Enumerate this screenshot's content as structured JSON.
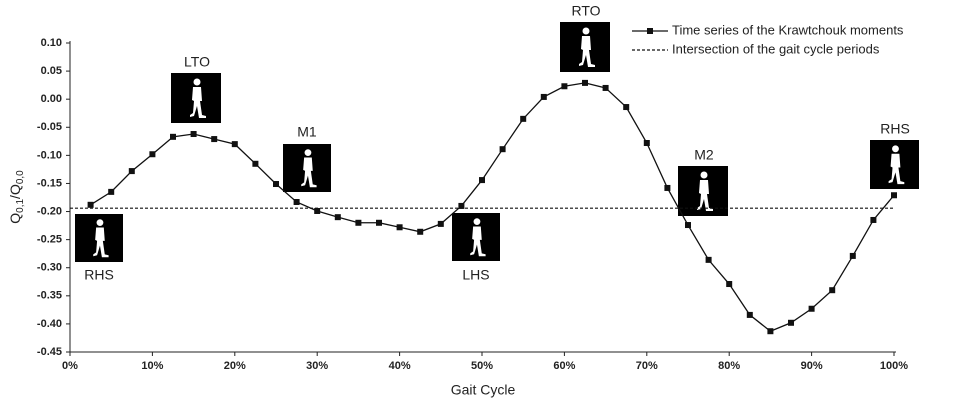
{
  "chart_data": {
    "type": "line",
    "x_label": "Gait Cycle",
    "y_label": [
      "Q",
      "0,1",
      "/Q",
      "0,0"
    ],
    "xlim": [
      0,
      100
    ],
    "ylim": [
      -0.45,
      0.1
    ],
    "xticks": [
      {
        "value": 0,
        "label": "0%"
      },
      {
        "value": 10,
        "label": "10%"
      },
      {
        "value": 20,
        "label": "20%"
      },
      {
        "value": 30,
        "label": "30%"
      },
      {
        "value": 40,
        "label": "40%"
      },
      {
        "value": 50,
        "label": "50%"
      },
      {
        "value": 60,
        "label": "60%"
      },
      {
        "value": 70,
        "label": "70%"
      },
      {
        "value": 80,
        "label": "80%"
      },
      {
        "value": 90,
        "label": "90%"
      },
      {
        "value": 100,
        "label": "100%"
      }
    ],
    "yticks": [
      {
        "value": 0.1,
        "label": "0.10"
      },
      {
        "value": 0.05,
        "label": "0.05"
      },
      {
        "value": 0,
        "label": "0.00"
      },
      {
        "value": -0.05,
        "label": "-0.05"
      },
      {
        "value": -0.1,
        "label": "-0.10"
      },
      {
        "value": -0.15,
        "label": "-0.15"
      },
      {
        "value": -0.2,
        "label": "-0.20"
      },
      {
        "value": -0.25,
        "label": "-0.25"
      },
      {
        "value": -0.3,
        "label": "-0.30"
      },
      {
        "value": -0.35,
        "label": "-0.35"
      },
      {
        "value": -0.4,
        "label": "-0.40"
      },
      {
        "value": -0.45,
        "label": "-0.45"
      }
    ],
    "legend": "top-right",
    "series": [
      {
        "name": "Time series of the Krawtchouk moments",
        "color": "#111111",
        "style": "solid",
        "marker": "square",
        "x": [
          2.5,
          5,
          7.5,
          10,
          12.5,
          15,
          17.5,
          20,
          22.5,
          25,
          27.5,
          30,
          32.5,
          35,
          37.5,
          40,
          42.5,
          45,
          47.5,
          50,
          52.5,
          55,
          57.5,
          60,
          62.5,
          65,
          67.5,
          70,
          72.5,
          75,
          77.5,
          80,
          82.5,
          85,
          87.5,
          90,
          92.5,
          95,
          97.5,
          100
        ],
        "values": [
          -0.188,
          -0.165,
          -0.128,
          -0.098,
          -0.067,
          -0.062,
          -0.071,
          -0.08,
          -0.115,
          -0.151,
          -0.183,
          -0.199,
          -0.21,
          -0.22,
          -0.22,
          -0.228,
          -0.236,
          -0.222,
          -0.19,
          -0.144,
          -0.089,
          -0.035,
          0.004,
          0.023,
          0.029,
          0.02,
          -0.014,
          -0.078,
          -0.158,
          -0.224,
          -0.286,
          -0.329,
          -0.384,
          -0.413,
          -0.398,
          -0.373,
          -0.34,
          -0.279,
          -0.215,
          -0.171
        ]
      },
      {
        "name": "Intersection of the gait cycle periods",
        "color": "#111111",
        "style": "dashed",
        "marker": "none",
        "x": [
          0,
          100
        ],
        "values": [
          -0.194,
          -0.194
        ]
      }
    ],
    "annotations": [
      "RHS",
      "LTO",
      "M1",
      "LHS",
      "RTO",
      "M2",
      "RHS"
    ]
  }
}
